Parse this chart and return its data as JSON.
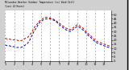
{
  "title_line1": "Milwaukee Weather Outdoor Temperature (vs) Wind Chill",
  "title_line2": "(Last 24 Hours)",
  "background_color": "#d0d0d0",
  "plot_background": "#ffffff",
  "grid_color": "#888888",
  "temp_color": "#cc0000",
  "windchill_color": "#0000cc",
  "x_values": [
    0,
    1,
    2,
    3,
    4,
    5,
    6,
    7,
    8,
    9,
    10,
    11,
    12,
    13,
    14,
    15,
    16,
    17,
    18,
    19,
    20,
    21,
    22,
    23,
    24,
    25,
    26,
    27,
    28,
    29,
    30,
    31,
    32,
    33,
    34,
    35,
    36,
    37,
    38,
    39,
    40,
    41,
    42,
    43,
    44,
    45,
    46,
    47
  ],
  "temp_values": [
    22,
    21,
    21,
    20,
    20,
    20,
    19,
    19,
    20,
    22,
    23,
    26,
    30,
    35,
    38,
    42,
    44,
    46,
    47,
    47,
    46,
    45,
    44,
    42,
    40,
    38,
    36,
    34,
    33,
    32,
    34,
    36,
    38,
    37,
    35,
    33,
    30,
    27,
    25,
    22,
    20,
    18,
    17,
    16,
    15,
    14,
    13,
    12
  ],
  "windchill_values": [
    14,
    13,
    13,
    12,
    12,
    11,
    11,
    11,
    12,
    14,
    16,
    20,
    26,
    31,
    35,
    40,
    42,
    44,
    45,
    45,
    45,
    44,
    43,
    41,
    38,
    36,
    34,
    32,
    31,
    30,
    32,
    34,
    36,
    35,
    33,
    31,
    28,
    25,
    23,
    20,
    18,
    16,
    15,
    14,
    13,
    12,
    11,
    10
  ],
  "ylim": [
    -5,
    55
  ],
  "ytick_values": [
    50,
    45,
    40,
    35,
    30,
    25,
    20,
    15,
    10,
    5,
    0,
    -5
  ],
  "ytick_labels": [
    "50",
    "45",
    "40",
    "35",
    "30",
    "25",
    "20",
    "15",
    "10",
    "5",
    "0",
    "-5"
  ],
  "xlim": [
    0,
    47
  ],
  "grid_x_positions": [
    0,
    4,
    8,
    12,
    16,
    20,
    24,
    28,
    32,
    36,
    40,
    44,
    47
  ],
  "xtick_positions": [
    0,
    4,
    8,
    12,
    16,
    20,
    24,
    28,
    32,
    36,
    40,
    44
  ],
  "xtick_labels": [
    "1",
    "2",
    "3",
    "4",
    "5",
    "6",
    "7",
    "8",
    "9",
    "10",
    "11",
    "12"
  ],
  "figsize": [
    1.6,
    0.87
  ],
  "dpi": 100
}
